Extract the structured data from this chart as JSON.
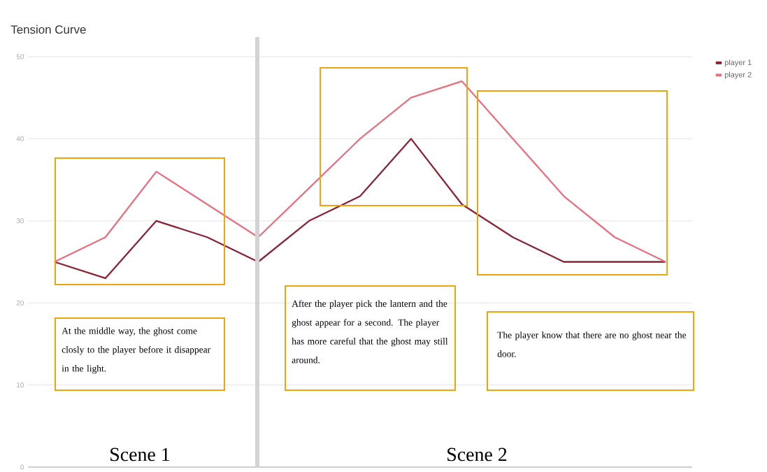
{
  "chart_data": {
    "type": "line",
    "title": "Tension Curve",
    "categories": [
      null,
      null,
      null,
      null,
      null,
      null,
      null,
      null,
      null,
      null,
      null,
      null,
      null
    ],
    "series": [
      {
        "name": "player 1",
        "color": "#8b2335",
        "values": [
          25,
          23,
          30,
          28,
          25,
          30,
          33,
          40,
          32,
          28,
          25,
          25,
          25
        ]
      },
      {
        "name": "player 2",
        "color": "#e8707f",
        "values": [
          25,
          28,
          36,
          32,
          28,
          34,
          40,
          45,
          47,
          40,
          33,
          28,
          25
        ]
      }
    ],
    "ylim": [
      0,
      50
    ],
    "yticks": [
      0,
      10,
      20,
      30,
      40,
      50
    ],
    "grid": "y",
    "legend": "right",
    "marker": "none",
    "line_style": "solid",
    "annotations": [
      "At the middle way, the ghost come closly to the player before it disappear in the light.",
      "After the player pick the lantern and the ghost appear for a second. The player has more careful that the ghost may still around.",
      "The player know that there are no ghost near the door.",
      "Scene 1",
      "Scene 2"
    ]
  }
}
